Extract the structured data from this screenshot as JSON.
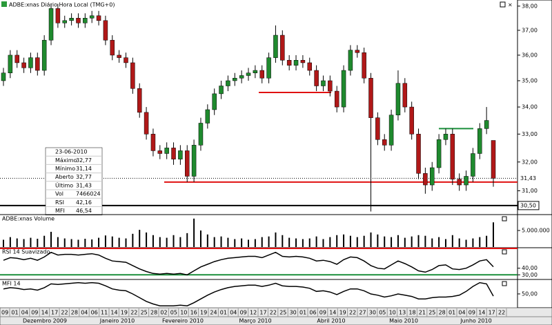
{
  "chart_data": [
    {
      "type": "candlestick",
      "title": "ADBE:xnas Diário Hora Local (TMG+0)",
      "log_scale": true,
      "ylim": [
        30.22,
        38.17
      ],
      "yticks": [
        {
          "value": 31,
          "label": "31,00"
        },
        {
          "value": 32,
          "label": "32,00"
        },
        {
          "value": 33,
          "label": "33,00"
        },
        {
          "value": 34,
          "label": "34,00"
        },
        {
          "value": 35,
          "label": "35,00"
        },
        {
          "value": 36,
          "label": "36,00"
        },
        {
          "value": 37,
          "label": "37,00"
        },
        {
          "value": 38,
          "label": "38,00"
        }
      ],
      "up_color": "#1f8a2e",
      "down_color": "#b01818",
      "open": [
        35.0,
        35.3,
        36.0,
        35.7,
        35.5,
        35.9,
        35.4,
        36.6,
        37.9,
        37.3,
        37.4,
        37.5,
        37.3,
        37.5,
        37.6,
        37.4,
        36.6,
        36.0,
        35.9,
        35.7,
        34.7,
        33.8,
        33.0,
        32.4,
        32.3,
        32.5,
        32.1,
        32.4,
        31.5,
        32.6,
        33.4,
        33.9,
        34.5,
        34.8,
        35.0,
        35.1,
        35.2,
        35.3,
        35.4,
        35.1,
        35.9,
        36.8,
        35.8,
        35.6,
        35.8,
        35.7,
        35.4,
        34.8,
        35.0,
        34.6,
        34.0,
        35.4,
        36.2,
        36.1,
        35.1,
        33.6,
        32.8,
        32.6,
        33.7,
        34.9,
        34.0,
        33.0,
        31.6,
        31.2,
        31.8,
        32.8,
        33.0,
        31.4,
        31.2,
        31.5,
        32.3,
        33.2,
        32.77
      ],
      "high": [
        35.5,
        36.2,
        36.2,
        35.9,
        36.1,
        36.1,
        36.8,
        38.1,
        38.1,
        37.6,
        37.7,
        37.7,
        37.7,
        37.8,
        37.8,
        37.6,
        36.8,
        36.2,
        36.1,
        35.9,
        34.9,
        34.0,
        33.2,
        32.6,
        32.7,
        32.7,
        32.6,
        32.6,
        32.8,
        33.6,
        34.1,
        34.7,
        35.0,
        35.2,
        35.3,
        35.4,
        35.5,
        35.6,
        35.6,
        36.1,
        37.2,
        37.0,
        36.0,
        36.0,
        36.0,
        35.9,
        35.6,
        35.2,
        35.2,
        34.8,
        35.6,
        36.4,
        36.4,
        36.3,
        35.3,
        33.8,
        33.0,
        33.9,
        35.4,
        35.1,
        34.2,
        33.2,
        31.8,
        32.0,
        33.0,
        33.2,
        33.2,
        31.6,
        31.7,
        32.5,
        33.4,
        34.0,
        32.77
      ],
      "low": [
        34.8,
        35.1,
        35.5,
        35.3,
        35.3,
        35.2,
        35.2,
        36.4,
        37.1,
        37.1,
        37.2,
        37.1,
        37.1,
        37.3,
        37.2,
        36.4,
        35.8,
        35.7,
        35.5,
        34.5,
        33.6,
        32.8,
        32.2,
        32.1,
        32.1,
        31.9,
        31.9,
        31.3,
        31.3,
        32.4,
        33.2,
        33.7,
        34.3,
        34.6,
        34.8,
        34.9,
        35.0,
        35.1,
        34.9,
        34.9,
        35.7,
        35.6,
        35.4,
        35.4,
        35.5,
        35.2,
        34.6,
        34.6,
        34.4,
        33.8,
        33.8,
        35.2,
        35.9,
        34.9,
        30.3,
        32.6,
        32.4,
        32.4,
        33.5,
        33.8,
        32.8,
        31.4,
        30.9,
        31.0,
        31.6,
        32.6,
        31.2,
        31.0,
        31.0,
        31.3,
        32.1,
        33.0,
        31.14
      ],
      "close": [
        35.3,
        36.0,
        35.7,
        35.5,
        35.9,
        35.4,
        36.6,
        37.9,
        37.3,
        37.4,
        37.5,
        37.3,
        37.5,
        37.6,
        37.4,
        36.6,
        36.0,
        35.9,
        35.7,
        34.7,
        33.8,
        33.0,
        32.4,
        32.3,
        32.5,
        32.1,
        32.4,
        31.5,
        32.6,
        33.4,
        33.9,
        34.5,
        34.8,
        35.0,
        35.1,
        35.2,
        35.3,
        35.4,
        35.1,
        35.9,
        36.8,
        35.8,
        35.6,
        35.8,
        35.7,
        35.4,
        34.8,
        35.0,
        34.6,
        34.0,
        35.4,
        36.2,
        36.1,
        35.1,
        33.6,
        32.8,
        32.6,
        33.7,
        34.9,
        34.0,
        33.0,
        31.6,
        31.2,
        31.8,
        32.8,
        33.0,
        31.4,
        31.2,
        31.5,
        32.3,
        33.2,
        33.5,
        31.43
      ],
      "lines": [
        {
          "value": 34.55,
          "color": "#e01010"
        },
        {
          "value": 31.3,
          "color": "#e01010"
        },
        {
          "value": 33.2,
          "color": "#1a8f3a"
        },
        {
          "value": 30.5,
          "color": "#000000",
          "label": "30,50"
        }
      ],
      "last": {
        "value": 31.43,
        "label": "31,43"
      },
      "info": {
        "date": "23-06-2010",
        "rows": [
          {
            "name": "Máximo",
            "value": 32.77,
            "label": "32,77"
          },
          {
            "name": "Mínimo",
            "value": 31.14,
            "label": "31,14"
          },
          {
            "name": "Aberto",
            "value": 32.77,
            "label": "32,77"
          },
          {
            "name": "Último",
            "value": 31.43,
            "label": "31,43"
          },
          {
            "name": "Vol",
            "value": 7466024
          },
          {
            "name": "RSI",
            "value": 42.16,
            "label": "42,16"
          },
          {
            "name": "MFI",
            "value": 46.54,
            "label": "46,54"
          }
        ]
      },
      "day_labels": [
        "09",
        "01",
        "04",
        "09",
        "14",
        "17",
        "22",
        "28",
        "04",
        "06",
        "11",
        "14",
        "19",
        "22",
        "25",
        "28",
        "02",
        "05",
        "10",
        "16",
        "19",
        "24",
        "01",
        "04",
        "09",
        "12",
        "17",
        "22",
        "25",
        "30",
        "01",
        "06",
        "09",
        "14",
        "19",
        "22",
        "27",
        "30",
        "05",
        "10",
        "13",
        "18",
        "21",
        "25",
        "28",
        "01",
        "04",
        "09",
        "14",
        "17",
        "22"
      ],
      "month_labels": [
        "Dezembro 2009",
        "Janeiro 2010",
        "Fevereiro 2010",
        "Março 2010",
        "Abril 2010",
        "Maio 2010",
        "Junho 2010"
      ]
    },
    {
      "type": "bar",
      "title": "ADBE:xnas Volume",
      "color": "#000000",
      "ylim": [
        0,
        9600000
      ],
      "yticks": [
        {
          "value": 5000000,
          "label": "5.000.000"
        }
      ],
      "values": [
        2200000,
        3000000,
        2600000,
        2400000,
        2800000,
        2500000,
        3400000,
        4600000,
        3000000,
        2600000,
        2400000,
        2200000,
        2500000,
        2300000,
        2800000,
        3500000,
        3200000,
        2800000,
        2600000,
        4000000,
        5200000,
        4400000,
        3600000,
        3000000,
        2800000,
        3600000,
        3000000,
        4200000,
        8600000,
        5000000,
        3800000,
        3000000,
        3200000,
        2800000,
        2400000,
        2600000,
        2200000,
        2400000,
        3000000,
        3200000,
        4400000,
        3600000,
        2800000,
        2600000,
        2400000,
        2600000,
        3200000,
        2400000,
        3000000,
        3600000,
        3800000,
        3400000,
        3000000,
        3400000,
        4400000,
        3800000,
        3200000,
        3000000,
        3600000,
        2800000,
        3200000,
        3600000,
        3400000,
        2600000,
        3000000,
        2400000,
        3600000,
        2600000,
        2200000,
        2600000,
        3000000,
        3400000,
        7466024
      ]
    },
    {
      "type": "line",
      "title": "RSI 14 Suavizado",
      "color": "#000000",
      "ylim": [
        24,
        70
      ],
      "yticks": [
        {
          "value": 40,
          "label": "40,00"
        },
        {
          "value": 30,
          "label": "30,00"
        }
      ],
      "lines": [
        {
          "value": 70,
          "color": "#e01010"
        },
        {
          "value": 30,
          "color": "#1a8f3a"
        }
      ],
      "values": [
        52,
        56,
        55,
        53,
        55,
        52,
        57,
        64,
        60,
        61,
        61,
        60,
        61,
        62,
        60,
        55,
        51,
        50,
        49,
        44,
        39,
        35,
        32,
        31,
        32,
        31,
        32,
        30,
        36,
        42,
        46,
        50,
        53,
        55,
        56,
        57,
        58,
        58,
        56,
        60,
        64,
        58,
        57,
        58,
        57,
        55,
        51,
        52,
        50,
        46,
        53,
        57,
        56,
        51,
        44,
        40,
        39,
        45,
        51,
        47,
        42,
        36,
        34,
        38,
        44,
        45,
        39,
        38,
        40,
        45,
        51,
        53,
        42.16
      ]
    },
    {
      "type": "line",
      "title": "MFI 14",
      "color": "#000000",
      "ylim": [
        29,
        72
      ],
      "yticks": [
        {
          "value": 50,
          "label": "50,00"
        }
      ],
      "values": [
        58,
        60,
        59,
        57,
        58,
        56,
        60,
        66,
        65,
        66,
        67,
        68,
        67,
        68,
        67,
        63,
        58,
        56,
        55,
        50,
        44,
        38,
        34,
        31,
        31,
        31,
        32,
        31,
        36,
        42,
        48,
        53,
        57,
        60,
        62,
        63,
        64,
        64,
        62,
        64,
        67,
        63,
        62,
        62,
        61,
        59,
        54,
        55,
        53,
        49,
        54,
        58,
        58,
        55,
        50,
        48,
        45,
        47,
        50,
        48,
        46,
        42,
        42,
        44,
        45,
        45,
        46,
        48,
        54,
        62,
        68,
        66,
        46.54
      ]
    }
  ]
}
